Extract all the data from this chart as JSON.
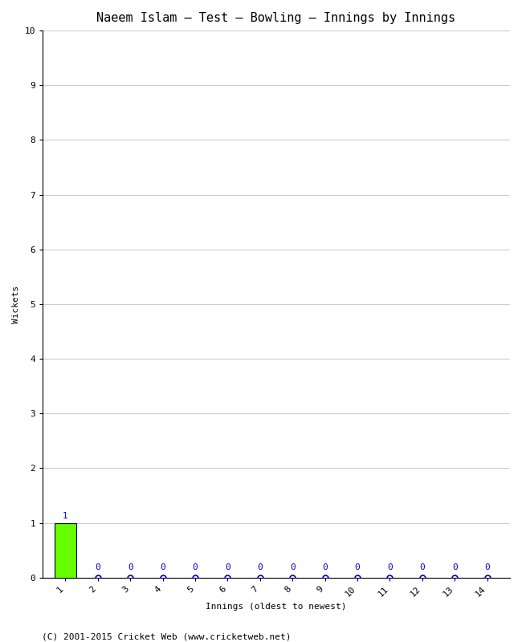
{
  "title": "Naeem Islam – Test – Bowling – Innings by Innings",
  "xlabel": "Innings (oldest to newest)",
  "ylabel": "Wickets",
  "innings": [
    1,
    2,
    3,
    4,
    5,
    6,
    7,
    8,
    9,
    10,
    11,
    12,
    13,
    14
  ],
  "wickets": [
    1,
    0,
    0,
    0,
    0,
    0,
    0,
    0,
    0,
    0,
    0,
    0,
    0,
    0
  ],
  "bar_color": "#66ff00",
  "bar_edge_color": "#000000",
  "zero_dot_color": "#0000cc",
  "ylim": [
    0,
    10
  ],
  "yticks": [
    0,
    1,
    2,
    3,
    4,
    5,
    6,
    7,
    8,
    9,
    10
  ],
  "xticks": [
    1,
    2,
    3,
    4,
    5,
    6,
    7,
    8,
    9,
    10,
    11,
    12,
    13,
    14
  ],
  "background_color": "#ffffff",
  "grid_color": "#cccccc",
  "footer": "(C) 2001-2015 Cricket Web (www.cricketweb.net)",
  "title_fontsize": 11,
  "axis_label_fontsize": 8,
  "tick_fontsize": 8,
  "footer_fontsize": 8,
  "annotation_fontsize": 8
}
